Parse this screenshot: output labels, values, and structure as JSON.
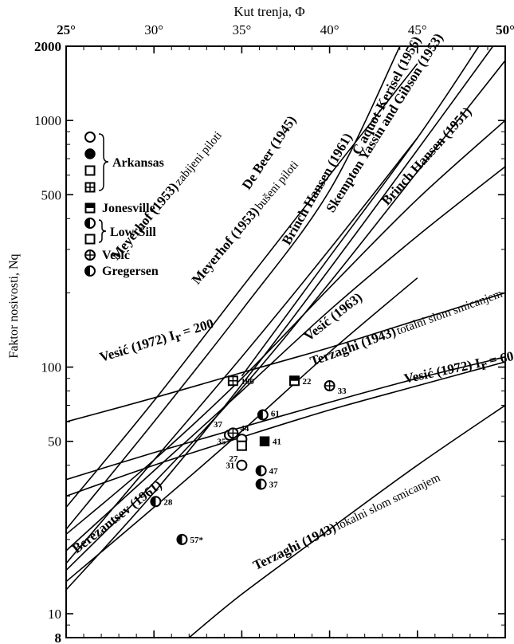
{
  "chart_data": {
    "type": "line",
    "title": "",
    "xlabel": "Kut trenja, Φ",
    "ylabel": "Faktor nosivosti, Nq",
    "x_axis_position": "top",
    "xlim": [
      25,
      50
    ],
    "ylim": [
      8,
      2000
    ],
    "yscale": "log",
    "x_ticks": [
      "25°",
      "30°",
      "35°",
      "40°",
      "45°",
      "50°"
    ],
    "y_ticks": [
      "8",
      "10",
      "50",
      "100",
      "500",
      "1000",
      "2000"
    ],
    "series": [
      {
        "name": "De Beer (1945)",
        "x": [
          25,
          30,
          35,
          40,
          45
        ],
        "y": [
          27,
          73,
          210,
          600,
          1700
        ]
      },
      {
        "name": "Meyerhof (1953) zabijeni piloti",
        "x": [
          25,
          30,
          35,
          40,
          44
        ],
        "y": [
          22,
          60,
          170,
          520,
          2000
        ]
      },
      {
        "name": "Meyerhof (1953) bušeni piloti",
        "x": [
          25,
          30,
          35,
          40,
          45
        ],
        "y": [
          16,
          42,
          110,
          300,
          850
        ]
      },
      {
        "name": "Brinch Hansen (1961)",
        "x": [
          35,
          40,
          45,
          48.5
        ],
        "y": [
          92,
          280,
          850,
          2000
        ]
      },
      {
        "name": "Caquot-Kerisel (1956)",
        "x": [
          25,
          30,
          35,
          40,
          45,
          49.3
        ],
        "y": [
          12.5,
          31,
          85,
          250,
          760,
          2000
        ]
      },
      {
        "name": "Skempton Yassin and Gibson (1953)",
        "x": [
          25,
          30,
          35,
          40,
          45,
          50
        ],
        "y": [
          15,
          34,
          82,
          220,
          620,
          1750
        ]
      },
      {
        "name": "Brinch Hansen (1951)",
        "x": [
          25,
          30,
          35,
          40,
          45,
          50
        ],
        "y": [
          21,
          42,
          90,
          210,
          480,
          1000
        ]
      },
      {
        "name": "Vesić (1963)",
        "x": [
          25,
          30,
          35,
          40,
          45,
          50
        ],
        "y": [
          18,
          38,
          80,
          170,
          340,
          650
        ]
      },
      {
        "name": "Vesić (1972) Ir = 200",
        "x": [
          25,
          30,
          35,
          40,
          45,
          50
        ],
        "y": [
          60,
          75,
          95,
          120,
          155,
          200
        ]
      },
      {
        "name": "Terzaghi (1943) totalni slom smicanjem",
        "x": [
          25,
          30,
          35,
          40,
          45,
          50
        ],
        "y": [
          30,
          40,
          52,
          67,
          84,
          105
        ]
      },
      {
        "name": "Vesić (1972) Ir = 60",
        "x": [
          25,
          30,
          35,
          40,
          45,
          50
        ],
        "y": [
          35,
          45,
          57,
          72,
          90,
          110
        ]
      },
      {
        "name": "Berezantsev (1961)",
        "x": [
          25,
          30,
          35,
          40,
          45
        ],
        "y": [
          13.5,
          27,
          55,
          115,
          230
        ]
      },
      {
        "name": "Terzaghi (1943) lokalni slom smicanjem",
        "x": [
          32,
          35,
          40,
          45,
          50
        ],
        "y": [
          8,
          12,
          22,
          40,
          70
        ]
      }
    ],
    "observations": [
      {
        "label": "100",
        "x": 34.5,
        "y": 88,
        "marker": "square-cross",
        "group": "Arkansas"
      },
      {
        "label": "22",
        "x": 38,
        "y": 88,
        "marker": "square-half",
        "group": "Jonesville"
      },
      {
        "label": "33",
        "x": 40,
        "y": 84,
        "marker": "circle-cross",
        "group": "Vesić"
      },
      {
        "label": "61",
        "x": 36.2,
        "y": 64,
        "marker": "circle-half",
        "group": "Gregersen"
      },
      {
        "label": "37",
        "x": 34.3,
        "y": 53,
        "marker": "circle-open",
        "group": "Arkansas"
      },
      {
        "label": "35",
        "x": 34.5,
        "y": 54,
        "marker": "circle-cross",
        "group": "Vesić"
      },
      {
        "label": "44",
        "x": 35,
        "y": 51,
        "marker": "circle-open",
        "group": "Arkansas"
      },
      {
        "label": "27",
        "x": 35,
        "y": 48,
        "marker": "square-open",
        "group": "Low-Sill"
      },
      {
        "label": "41",
        "x": 36.3,
        "y": 50,
        "marker": "square-filled",
        "group": "Arkansas"
      },
      {
        "label": "31",
        "x": 35,
        "y": 40,
        "marker": "circle-open",
        "group": "Arkansas"
      },
      {
        "label": "47",
        "x": 36.1,
        "y": 38,
        "marker": "circle-half",
        "group": "Low-Sill"
      },
      {
        "label": "37",
        "x": 36.1,
        "y": 33.5,
        "marker": "circle-half",
        "group": "Low-Sill"
      },
      {
        "label": "28",
        "x": 30.1,
        "y": 28.5,
        "marker": "circle-half",
        "group": "Gregersen"
      },
      {
        "label": "57*",
        "x": 31.6,
        "y": 20,
        "marker": "circle-half",
        "group": "Gregersen"
      }
    ],
    "curve_labels": [
      {
        "text": "De Beer (1945)",
        "suffix": ""
      },
      {
        "text": "Meyerhof (1953)",
        "suffix": "zabijeni piloti"
      },
      {
        "text": "Meyerhof (1953)",
        "suffix": "bušeni piloti"
      },
      {
        "text": "Brinch Hansen (1961)",
        "suffix": ""
      },
      {
        "text": "C aquot-Kerisel (1956)",
        "suffix": ""
      },
      {
        "text": "Skempton Yassin and Gibson (1953)",
        "suffix": ""
      },
      {
        "text": "Brinch Hansen (1951)",
        "suffix": ""
      },
      {
        "text": "Vesić (1963)",
        "suffix": ""
      },
      {
        "text": "Vesić (1972) I",
        "suffix": "r",
        "tail": " = 200"
      },
      {
        "text": "Terzaghi (1943)",
        "suffix": "totalni slom smicanjem"
      },
      {
        "text": "Vesić (1972) I",
        "suffix": "r",
        "tail": " = 60"
      },
      {
        "text": "Berezantsev (1961)",
        "suffix": ""
      },
      {
        "text": "Terzaghi (1943)",
        "suffix": "lokalni slom smicanjem"
      }
    ],
    "legend": [
      {
        "group": "Arkansas",
        "markers": [
          "circle-open",
          "circle-filled",
          "square-open",
          "square-cross"
        ]
      },
      {
        "group": "Jonesville",
        "markers": [
          "square-half"
        ]
      },
      {
        "group": "Low-Sill",
        "markers": [
          "circle-half",
          "square-open"
        ]
      },
      {
        "group": "Vesić",
        "markers": [
          "circle-cross"
        ]
      },
      {
        "group": "Gregersen",
        "markers": [
          "circle-half"
        ]
      }
    ],
    "grid": false,
    "legend_position": "top-left"
  }
}
